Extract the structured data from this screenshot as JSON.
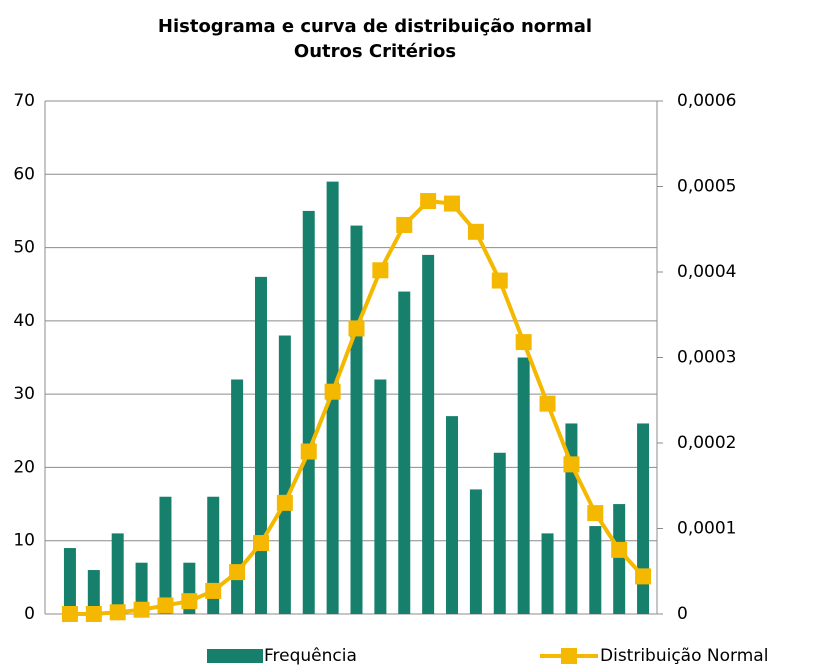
{
  "chart_data": {
    "type": "bar_line",
    "title": "Histograma e curva de distribuição normal",
    "subtitle": "Outros Critérios",
    "categories": [
      null,
      null,
      null,
      null,
      null,
      null,
      null,
      null,
      null,
      null,
      null,
      null,
      null,
      null,
      null,
      null,
      null,
      null,
      null,
      null,
      null,
      null,
      null,
      null,
      null
    ],
    "series": [
      {
        "name": "Frequência",
        "type": "bar",
        "color": "#17806d",
        "axis": "y",
        "values": [
          9,
          6,
          11,
          7,
          16,
          7,
          16,
          32,
          46,
          38,
          55,
          59,
          53,
          32,
          44,
          49,
          27,
          17,
          22,
          35,
          11,
          26,
          12,
          15,
          26
        ]
      },
      {
        "name": "Distribuição Normal",
        "type": "line",
        "color": "#f5b800",
        "axis": "y2",
        "values": [
          0,
          0,
          2e-06,
          5e-06,
          1e-05,
          1.5e-05,
          2.7e-05,
          4.9e-05,
          8.3e-05,
          0.00013,
          0.00019,
          0.00026,
          0.000334,
          0.000402,
          0.000455,
          0.000483,
          0.00048,
          0.000447,
          0.00039,
          0.000318,
          0.000246,
          0.000175,
          0.000118,
          7.5e-05,
          4.4e-05
        ]
      }
    ],
    "ylim": [
      0,
      70
    ],
    "yticks": [
      0,
      10,
      20,
      30,
      40,
      50,
      60,
      70
    ],
    "y2lim": [
      0,
      0.0006
    ],
    "y2ticks": [
      0,
      {
        "value": 0.0001,
        "label": "0,0001"
      },
      {
        "value": 0.0002,
        "label": "0,0002"
      },
      {
        "value": 0.0003,
        "label": "0,0003"
      },
      {
        "value": 0.0004,
        "label": "0,0004"
      },
      {
        "value": 0.0005,
        "label": "0,0005"
      },
      {
        "value": 0.0006,
        "label": "0,0006"
      }
    ],
    "grid": true,
    "legend": "bottom"
  }
}
